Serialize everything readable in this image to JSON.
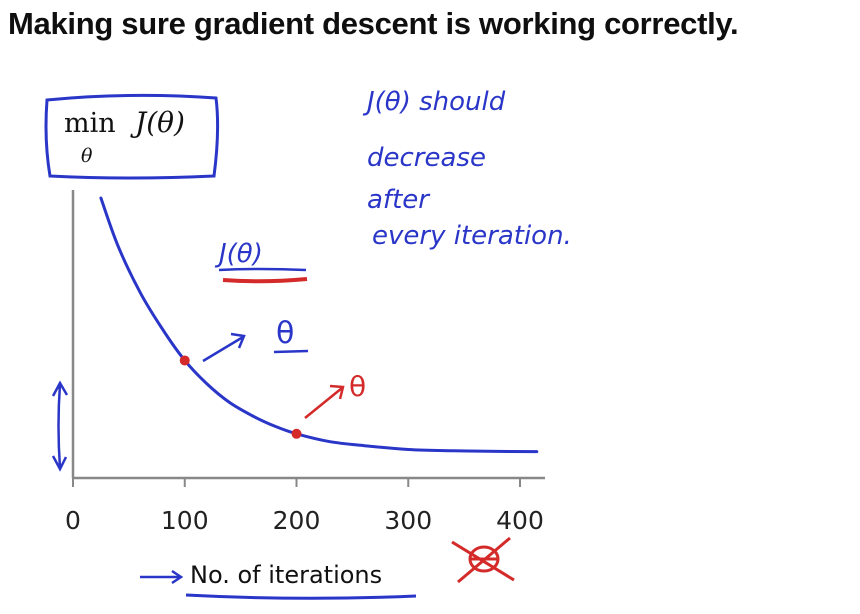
{
  "slide": {
    "title": "Making sure gradient descent is working correctly."
  },
  "formula_box": {
    "op": "min",
    "subscript": "θ",
    "func": "J(θ)"
  },
  "chart_data": {
    "type": "line",
    "title": "",
    "xlabel": "No. of iterations",
    "ylabel": "",
    "xlim": [
      0,
      420
    ],
    "xticks": [
      0,
      100,
      200,
      300,
      400
    ],
    "x": [
      25,
      40,
      60,
      80,
      100,
      120,
      140,
      160,
      180,
      200,
      230,
      260,
      300,
      340,
      380,
      415
    ],
    "y": [
      1.0,
      0.82,
      0.64,
      0.5,
      0.38,
      0.29,
      0.22,
      0.17,
      0.13,
      0.1,
      0.07,
      0.055,
      0.04,
      0.035,
      0.033,
      0.032
    ],
    "highlighted_points": [
      {
        "x": 100,
        "y": 0.38,
        "color": "#d42a2a"
      },
      {
        "x": 200,
        "y": 0.1,
        "color": "#d42a2a"
      }
    ],
    "curve_color": "#2a36c8"
  },
  "annotations": {
    "note_lines": [
      "J(θ) should",
      "decrease",
      "after",
      "every iteration."
    ],
    "curve_label": "J(θ)",
    "theta_blue": "θ",
    "theta_red": "θ",
    "ink_blue": "#2a36c8",
    "ink_red": "#d42a2a"
  }
}
